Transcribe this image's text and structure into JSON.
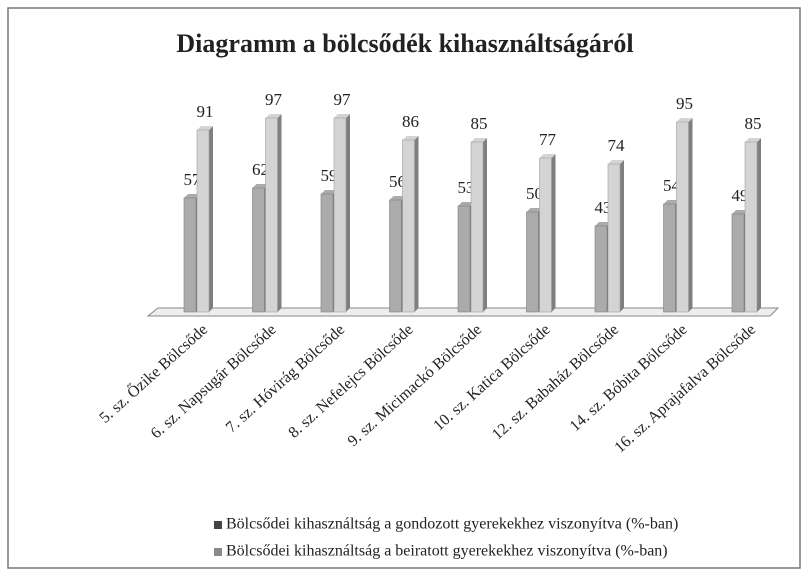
{
  "chart_data": {
    "type": "bar",
    "title": "Diagramm a bölcsődék kihasználtságáról",
    "categories": [
      "5. sz. Őzike Bölcsőde",
      "6. sz. Napsugár Bölcsőde",
      "7. sz. Hóvirág Bölcsőde",
      "8. sz. Nefelejcs Bölcsőde",
      "9. sz. Micimackó Bölcsőde",
      "10. sz. Katica Bölcsőde",
      "12. sz. Babaház Bölcsőde",
      "14. sz. Bóbita Bölcsőde",
      "16. sz. Aprajafalva Bölcsőde"
    ],
    "series": [
      {
        "name": "Bölcsődei kihasználtság a gondozott gyerekekhez viszonyítva (%-ban)",
        "color": "#ababab",
        "values": [
          57,
          62,
          59,
          56,
          53,
          50,
          43,
          54,
          49
        ]
      },
      {
        "name": "Bölcsődei kihasználtság a beiratott gyerekekhez viszonyítva (%-ban)",
        "color": "#d4d4d4",
        "values": [
          91,
          97,
          97,
          86,
          85,
          77,
          74,
          95,
          85
        ]
      }
    ],
    "data_labels": true
  }
}
